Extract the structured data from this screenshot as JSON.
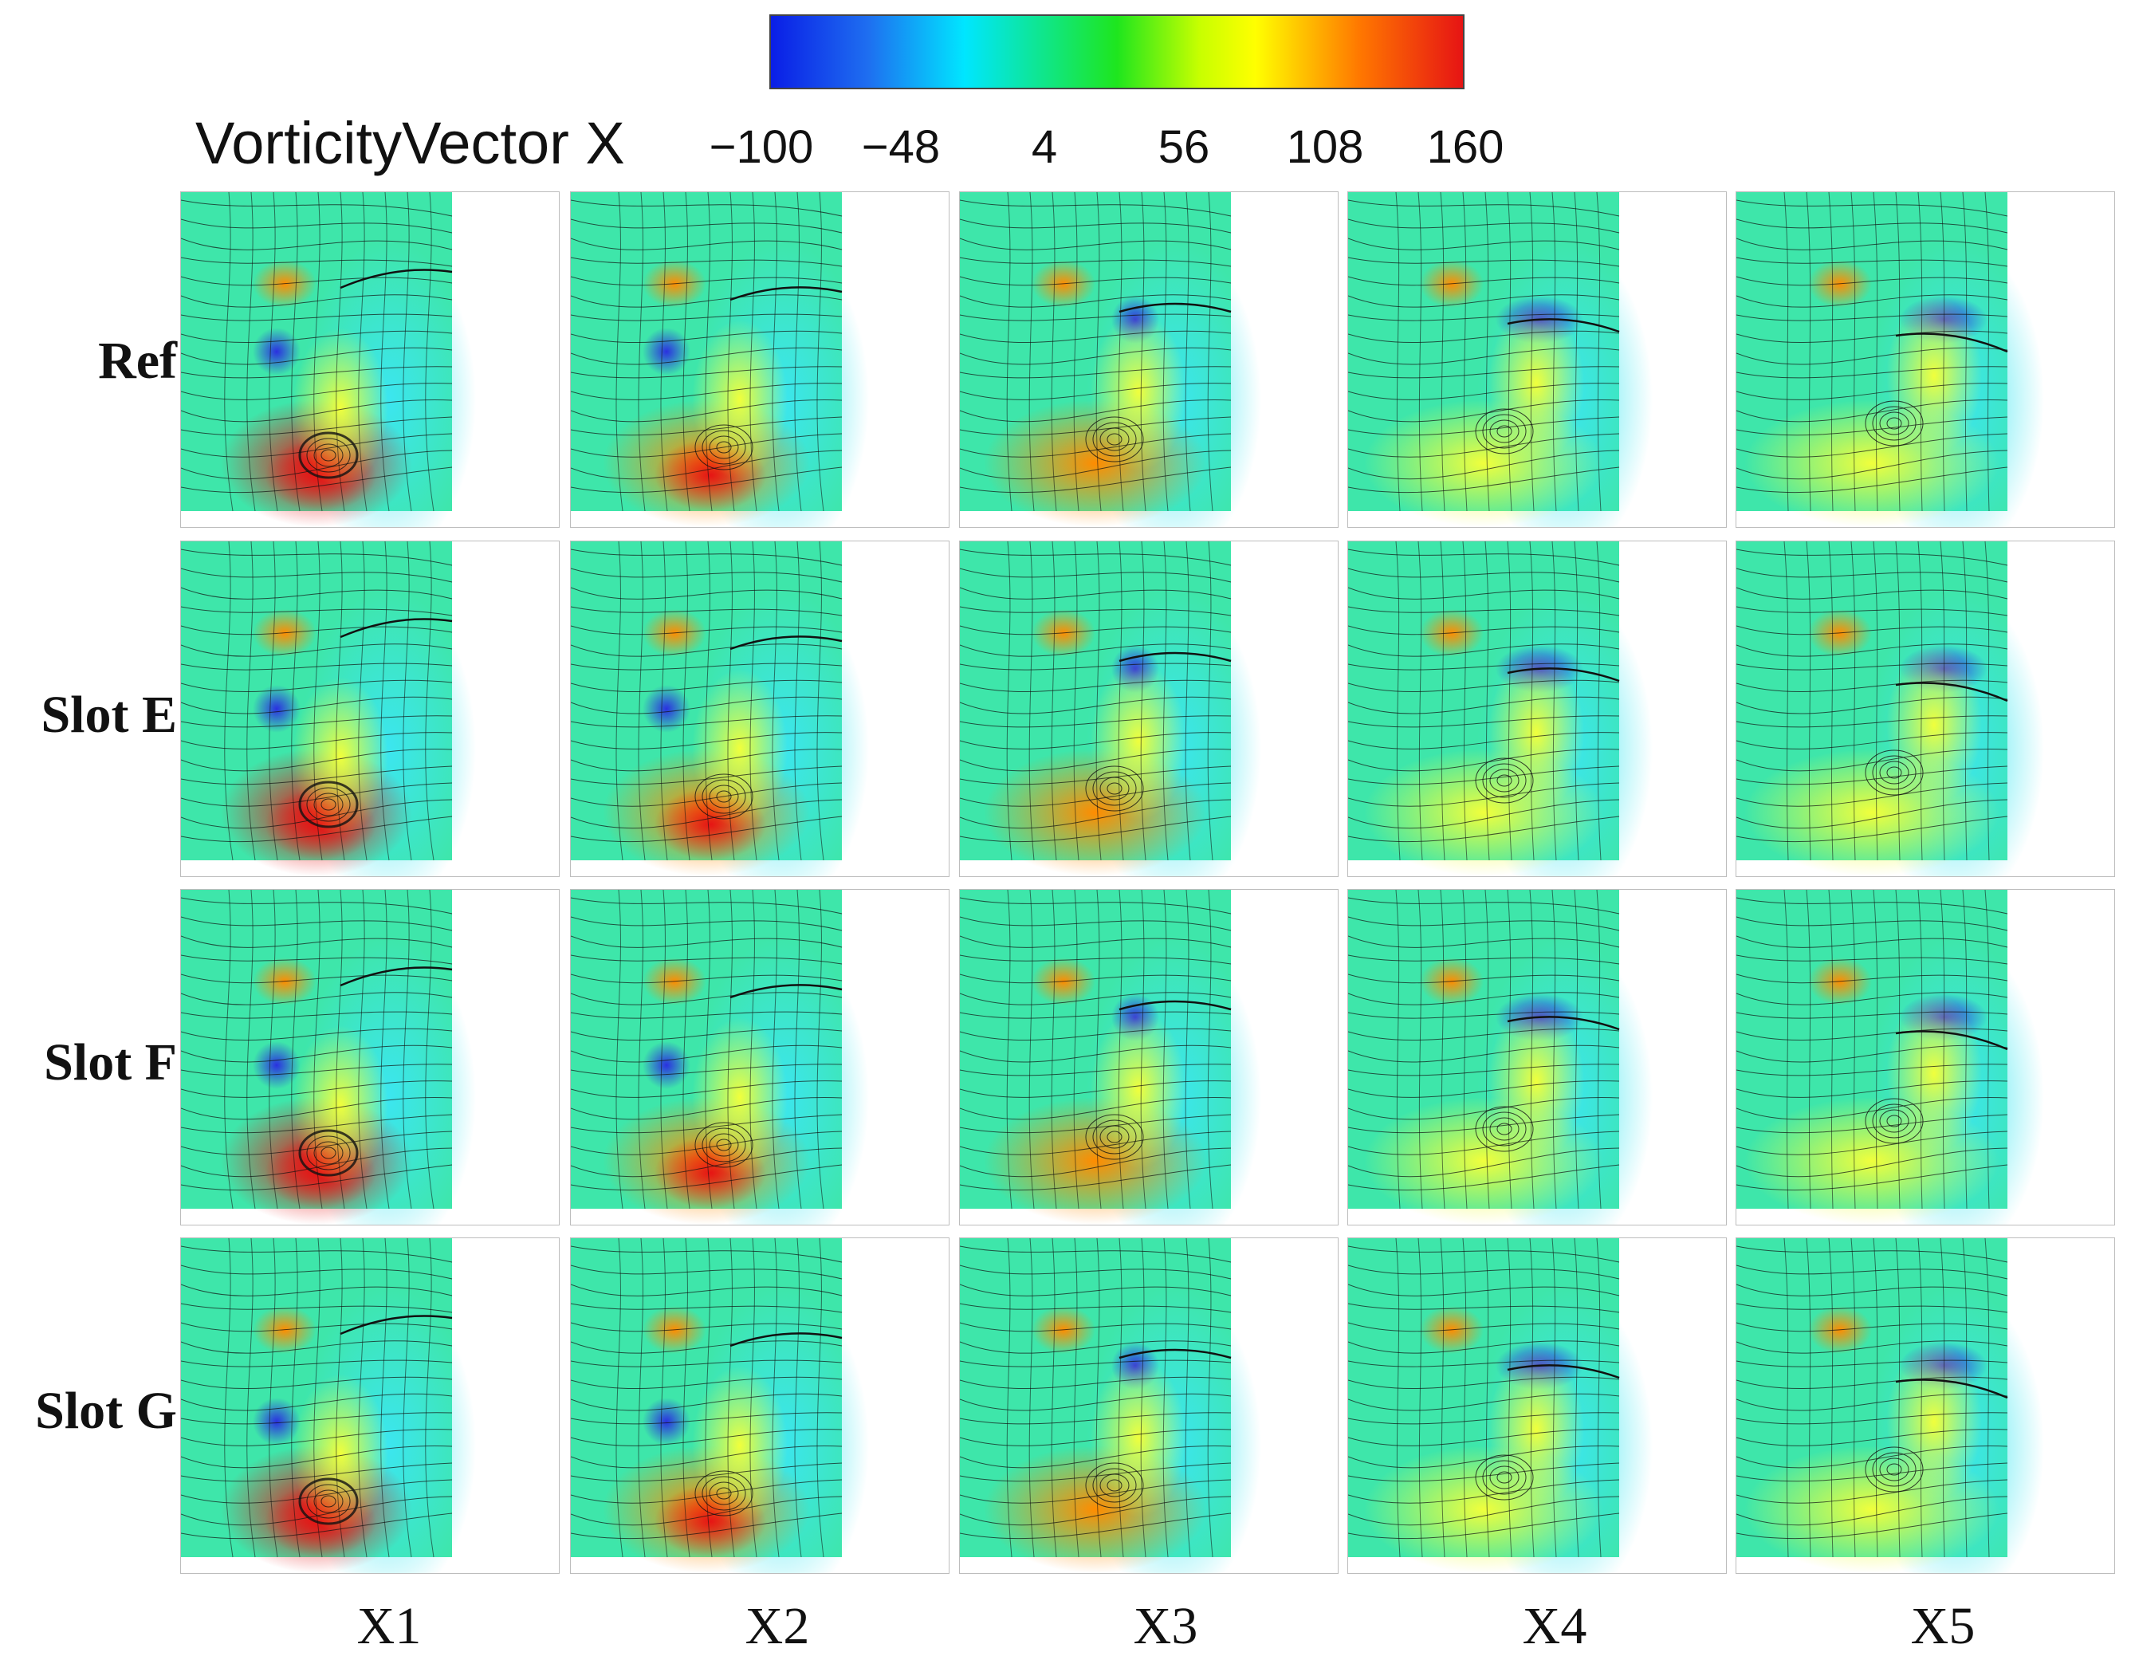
{
  "colorbar": {
    "title": "VorticityVector X",
    "ticks": [
      "−100",
      "−48",
      "4",
      "56",
      "108",
      "160"
    ],
    "range": [
      -100,
      160
    ],
    "colormap": [
      "#0a1ee6",
      "#00e6ff",
      "#1ee61e",
      "#ffff00",
      "#ff7800",
      "#e61414"
    ]
  },
  "rows": [
    {
      "label": "Ref"
    },
    {
      "label": "Slot E"
    },
    {
      "label": "Slot F"
    },
    {
      "label": "Slot G"
    }
  ],
  "columns": [
    {
      "label": "X1"
    },
    {
      "label": "X2"
    },
    {
      "label": "X3"
    },
    {
      "label": "X4"
    },
    {
      "label": "X5"
    }
  ],
  "field_colors": {
    "background": "#3ee6aa",
    "streamline": "#111111"
  }
}
